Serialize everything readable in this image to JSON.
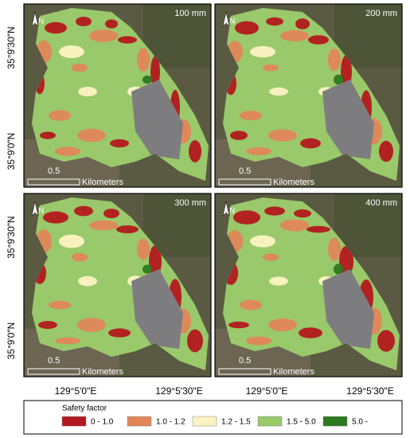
{
  "panels": [
    {
      "label": "100 mm",
      "scale": "0.5",
      "units": "Kilometers",
      "north": "N"
    },
    {
      "label": "200 mm",
      "scale": "0.5",
      "units": "Kilometers",
      "north": "N"
    },
    {
      "label": "300 mm",
      "scale": "0.5",
      "units": "Kilometers",
      "north": "N"
    },
    {
      "label": "400 mm",
      "scale": "0.5",
      "units": "Kilometers",
      "north": "N"
    }
  ],
  "latitude_labels": [
    [
      "35°9'30\"N",
      "35°9'0\"N"
    ],
    [
      "35°9'30\"N",
      "35°9'0\"N"
    ]
  ],
  "longitude_labels": [
    [
      "129°5'0\"E",
      "129°5'30\"E"
    ],
    [
      "129°5'0\"E",
      "129°5'30\"E"
    ]
  ],
  "legend": {
    "title": "Safety factor",
    "items": [
      {
        "label": "0 - 1.0",
        "color": "#b3191e"
      },
      {
        "label": "1.0 - 1.2",
        "color": "#e2865a"
      },
      {
        "label": "1.2 - 1.5",
        "color": "#fbf3c2"
      },
      {
        "label": "1.5 - 5.0",
        "color": "#99c96a"
      },
      {
        "label": "5.0 -",
        "color": "#2b7a1e"
      }
    ]
  }
}
